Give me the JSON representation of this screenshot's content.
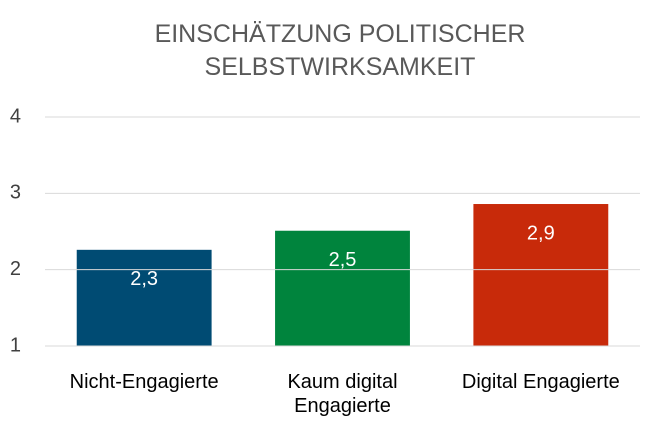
{
  "chart_data": {
    "type": "bar",
    "title": "EINSCHÄTZUNG POLITISCHER SELBSTWIRKSAMKEIT",
    "categories": [
      "Nicht-Engagierte",
      "Kaum digital Engagierte",
      "Digital Engagierte"
    ],
    "values": [
      2.26,
      2.51,
      2.86
    ],
    "value_labels": [
      "2,3",
      "2,5",
      "2,9"
    ],
    "colors": [
      "#004b73",
      "#00843d",
      "#c82a0a"
    ],
    "ylim": [
      1,
      4
    ],
    "yticks": [
      1,
      2,
      3,
      4
    ],
    "grid": true
  }
}
